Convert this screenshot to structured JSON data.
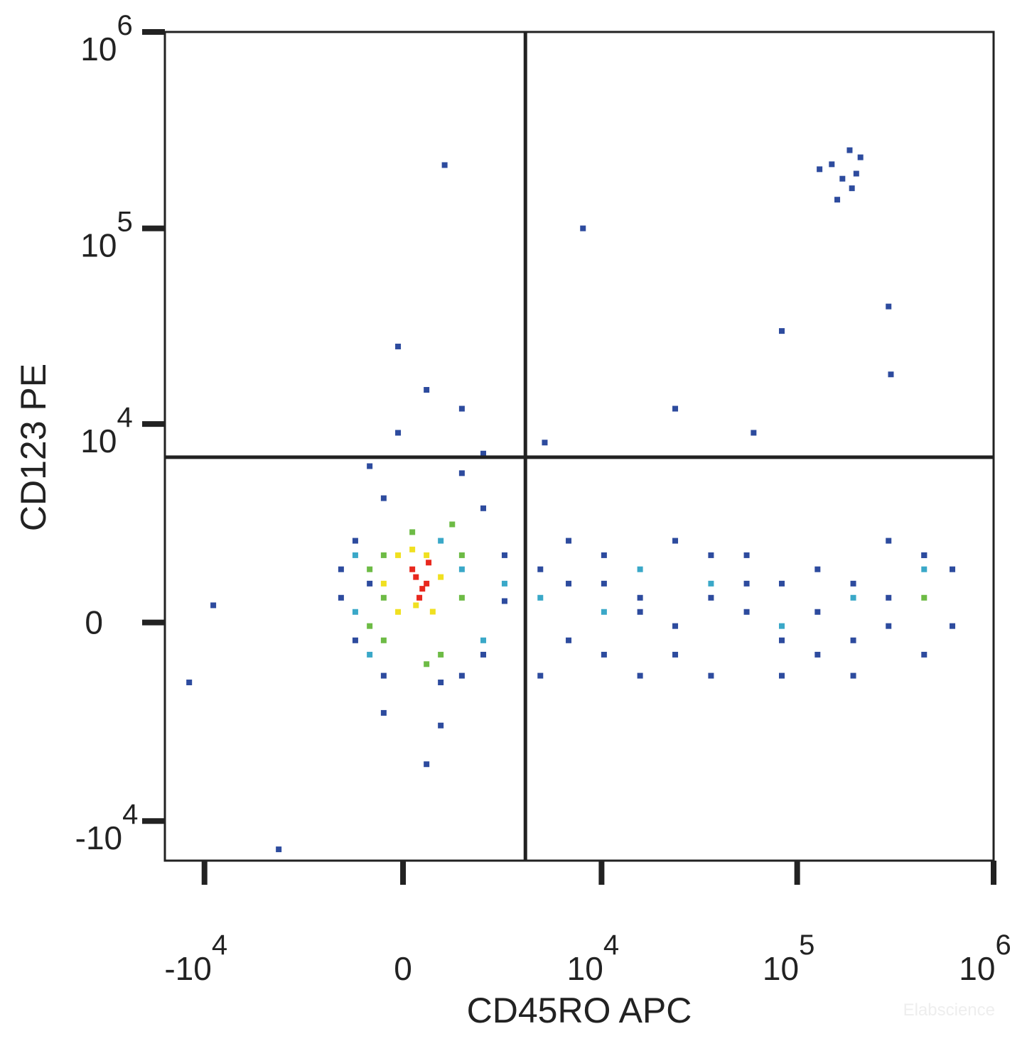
{
  "chart_data": {
    "type": "scatter",
    "x_label": "CD45RO APC",
    "y_label": "CD123 PE",
    "watermark": "Elabscience",
    "scale": "arcsinh",
    "cofactor": 1970,
    "xlim": [
      -16000,
      1000000
    ],
    "ylim": [
      -16000,
      1000000
    ],
    "xticks": [
      {
        "value": -10000,
        "label": "-10",
        "sup": "4"
      },
      0,
      {
        "value": 10000,
        "label": "10",
        "sup": "4"
      },
      {
        "value": 100000,
        "label": "10",
        "sup": "5"
      },
      {
        "value": 1000000,
        "label": "10",
        "sup": "6"
      }
    ],
    "yticks": [
      {
        "value": -10000,
        "label": "-10",
        "sup": "4"
      },
      0,
      {
        "value": 10000,
        "label": "10",
        "sup": "4"
      },
      {
        "value": 100000,
        "label": "10",
        "sup": "5"
      },
      {
        "value": 1000000,
        "label": "10",
        "sup": "6"
      }
    ],
    "quadrant_gates": {
      "x": 3900,
      "y": 6700
    },
    "series": [
      {
        "color": "#2d4b9e",
        "x": [
          -1560,
          -1160,
          -790,
          -1160,
          -450,
          -1560,
          2140,
          2940,
          2140,
          1470,
          -450,
          900,
          2940,
          4730,
          6720,
          10300,
          15800,
          23900,
          36400,
          55300,
          83500,
          127000,
          193000,
          292000,
          443000,
          617000,
          4730,
          6720,
          10300,
          15800,
          23900,
          36400,
          55300,
          83500,
          127000,
          193000,
          292000,
          443000,
          6720,
          15800,
          36400,
          83500,
          193000,
          443000,
          10300,
          23900,
          55300,
          127000,
          292000,
          617000,
          -115,
          550,
          1470,
          -790,
          170000,
          150000,
          190000,
          210000,
          130000,
          185000,
          160000,
          200000,
          -450,
          900,
          2140,
          1470,
          550,
          -115,
          23900,
          83500,
          292000,
          8000,
          -12000,
          -4000,
          1000,
          5000,
          60000,
          300000,
          -9000
        ],
        "y": [
          1310,
          -415,
          930,
          2190,
          -1310,
          580,
          -760,
          1720,
          3500,
          -1310,
          4000,
          -1500,
          500,
          1310,
          -415,
          930,
          580,
          -760,
          1720,
          245,
          -415,
          1310,
          930,
          580,
          1720,
          -82,
          -1310,
          2190,
          -760,
          -1310,
          2190,
          -1310,
          1720,
          -1310,
          -760,
          -1310,
          2190,
          -760,
          930,
          245,
          580,
          930,
          -415,
          1720,
          1720,
          -82,
          930,
          245,
          -82,
          1310,
          9000,
          15000,
          12000,
          6000,
          179000,
          212000,
          160000,
          230000,
          200000,
          250000,
          140000,
          190000,
          -2500,
          -3000,
          7000,
          5500,
          -5000,
          25000,
          12000,
          30000,
          40000,
          100000,
          -1500,
          -14000,
          210000,
          8000,
          9000,
          18000,
          400
        ]
      },
      {
        "color": "#3aa8c8",
        "x": [
          1470,
          2140,
          -1160,
          -790,
          2940,
          4730,
          10300,
          36400,
          193000,
          443000,
          83500,
          15800,
          -1160,
          900
        ],
        "y": [
          1310,
          -415,
          1720,
          -760,
          930,
          580,
          245,
          930,
          580,
          1310,
          -82,
          1310,
          245,
          2190
        ]
      },
      {
        "color": "#6dbb45",
        "x": [
          -790,
          -450,
          -790,
          1470,
          900,
          1470,
          -450,
          550,
          215,
          -450,
          443000,
          1200
        ],
        "y": [
          1310,
          1720,
          -82,
          1720,
          -760,
          580,
          -415,
          -1000,
          2500,
          580,
          580,
          2800
        ]
      },
      {
        "color": "#f0e020",
        "x": [
          -450,
          -115,
          215,
          550,
          900,
          -115,
          300,
          700
        ],
        "y": [
          930,
          1720,
          1900,
          1720,
          1100,
          245,
          400,
          250
        ]
      },
      {
        "color": "#e8281e",
        "x": [
          215,
          550,
          380,
          600,
          300,
          450
        ],
        "y": [
          1310,
          930,
          580,
          1500,
          1100,
          800
        ]
      }
    ]
  }
}
